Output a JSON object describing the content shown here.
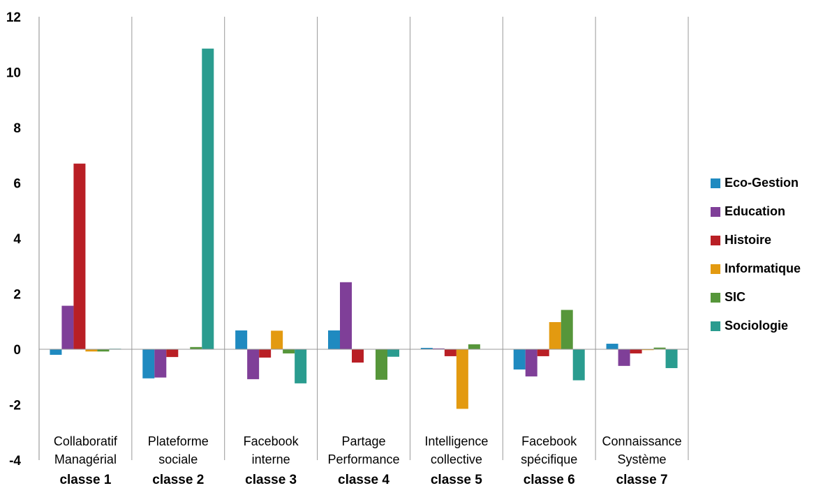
{
  "chart_data": {
    "type": "bar",
    "categories": [
      {
        "label": [
          "Collaboratif",
          "Managérial"
        ],
        "class": "classe 1"
      },
      {
        "label": [
          "Plateforme",
          "sociale"
        ],
        "class": "classe 2"
      },
      {
        "label": [
          "Facebook",
          "interne"
        ],
        "class": "classe 3"
      },
      {
        "label": [
          "Partage",
          "Performance"
        ],
        "class": "classe 4"
      },
      {
        "label": [
          "Intelligence",
          "collective"
        ],
        "class": "classe 5"
      },
      {
        "label": [
          "Facebook",
          "spécifique"
        ],
        "class": "classe 6"
      },
      {
        "label": [
          "Connaissance",
          "Système"
        ],
        "class": "classe 7"
      }
    ],
    "series": [
      {
        "name": "Eco-Gestion",
        "color": "#1f8ac0",
        "values": [
          -0.2,
          -1.05,
          0.68,
          0.68,
          0.05,
          -0.73,
          0.2
        ]
      },
      {
        "name": "Education",
        "color": "#7f3f98",
        "values": [
          1.57,
          -1.02,
          -1.08,
          2.42,
          0.03,
          -0.98,
          -0.6
        ]
      },
      {
        "name": "Histoire",
        "color": "#b91f25",
        "values": [
          6.7,
          -0.28,
          -0.3,
          -0.48,
          -0.25,
          -0.25,
          -0.15
        ]
      },
      {
        "name": "Informatique",
        "color": "#e39a10",
        "values": [
          -0.08,
          0.0,
          0.67,
          0.0,
          -2.15,
          0.98,
          -0.03
        ]
      },
      {
        "name": "SIC",
        "color": "#56963a",
        "values": [
          -0.08,
          0.08,
          -0.15,
          -1.1,
          0.18,
          1.42,
          0.06
        ]
      },
      {
        "name": "Sociologie",
        "color": "#2a9c8f",
        "values": [
          0.02,
          10.85,
          -1.23,
          -0.27,
          0.0,
          -1.12,
          -0.68
        ]
      }
    ],
    "yticks": [
      "12",
      "10",
      "8",
      "6",
      "4",
      "2",
      "0",
      "-2",
      "-4"
    ],
    "ylim": [
      -4,
      12
    ],
    "title": "",
    "xlabel": "",
    "ylabel": "",
    "legend_position": "right"
  }
}
